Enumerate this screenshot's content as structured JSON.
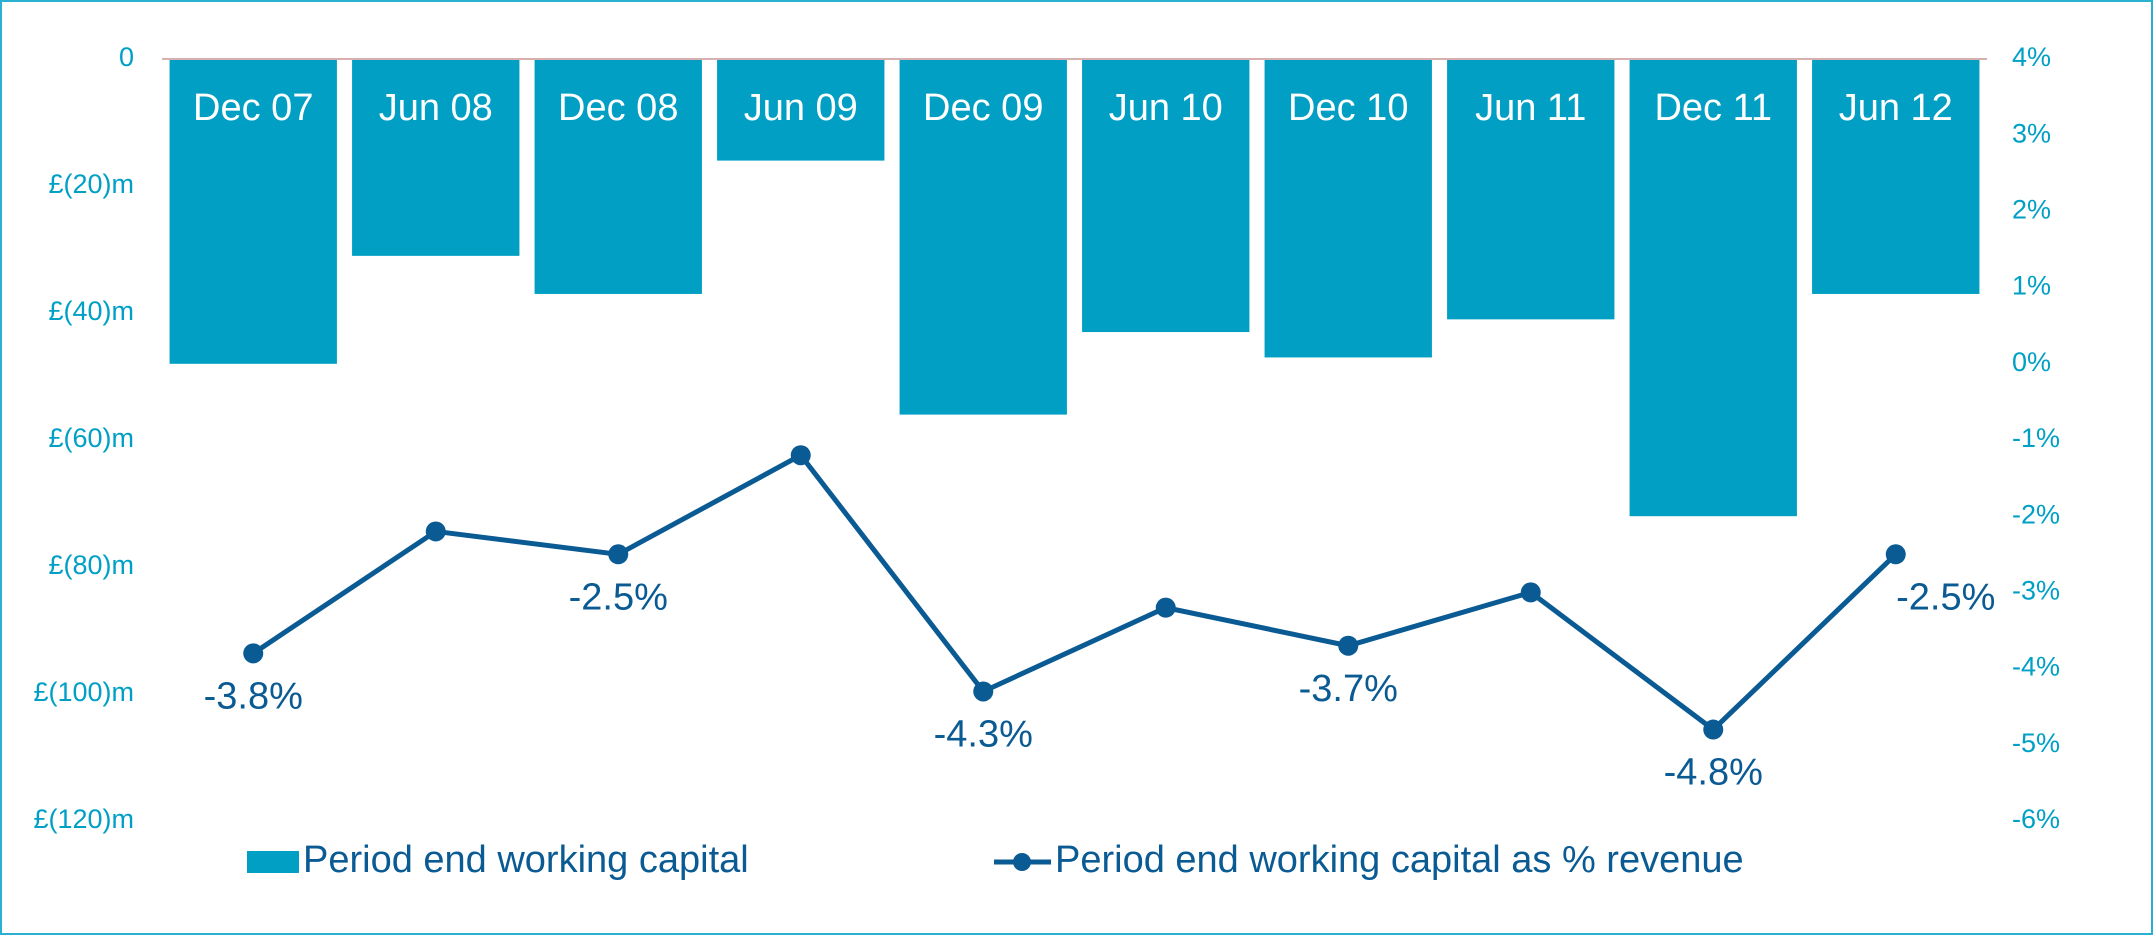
{
  "chart_data": {
    "type": "bar_line",
    "categories": [
      "Dec 07",
      "Jun 08",
      "Dec 08",
      "Jun 09",
      "Dec 09",
      "Jun 10",
      "Dec 10",
      "Jun 11",
      "Dec 11",
      "Jun 12"
    ],
    "series": [
      {
        "name": "Period end working capital",
        "color": "#009fc3",
        "type": "bar",
        "values": [
          -48,
          -31,
          -37,
          -16,
          -56,
          -43,
          -47,
          -41,
          -72,
          -37
        ]
      },
      {
        "name": "Period end working capital as % revenue",
        "color": "#0a5a93",
        "type": "line",
        "axis": "y2",
        "values": [
          -3.8,
          -2.2,
          -2.5,
          -1.2,
          -4.3,
          -3.2,
          -3.7,
          -3.0,
          -4.8,
          -2.5
        ],
        "value_labels": [
          "-3.8%",
          null,
          "-2.5%",
          null,
          "-4.3%",
          null,
          "-3.7%",
          null,
          "-4.8%",
          "-2.5%"
        ]
      }
    ],
    "ylim": [
      -120,
      0
    ],
    "yticks": [
      {
        "value": 0,
        "label": "0"
      },
      {
        "value": -20,
        "label": "£(20)m"
      },
      {
        "value": -40,
        "label": "£(40)m"
      },
      {
        "value": -60,
        "label": "£(60)m"
      },
      {
        "value": -80,
        "label": "£(80)m"
      },
      {
        "value": -100,
        "label": "£(100)m"
      },
      {
        "value": -120,
        "label": "£(120)m"
      }
    ],
    "y2lim": [
      -6,
      4
    ],
    "y2ticks": [
      {
        "value": 4,
        "label": "4%"
      },
      {
        "value": 3,
        "label": "3%"
      },
      {
        "value": 2,
        "label": "2%"
      },
      {
        "value": 1,
        "label": "1%"
      },
      {
        "value": 0,
        "label": "0%"
      },
      {
        "value": -1,
        "label": "-1%"
      },
      {
        "value": -2,
        "label": "-2%"
      },
      {
        "value": -3,
        "label": "-3%"
      },
      {
        "value": -4,
        "label": "-4%"
      },
      {
        "value": -5,
        "label": "-5%"
      },
      {
        "value": -6,
        "label": "-6%"
      }
    ],
    "legend": "bottom"
  }
}
